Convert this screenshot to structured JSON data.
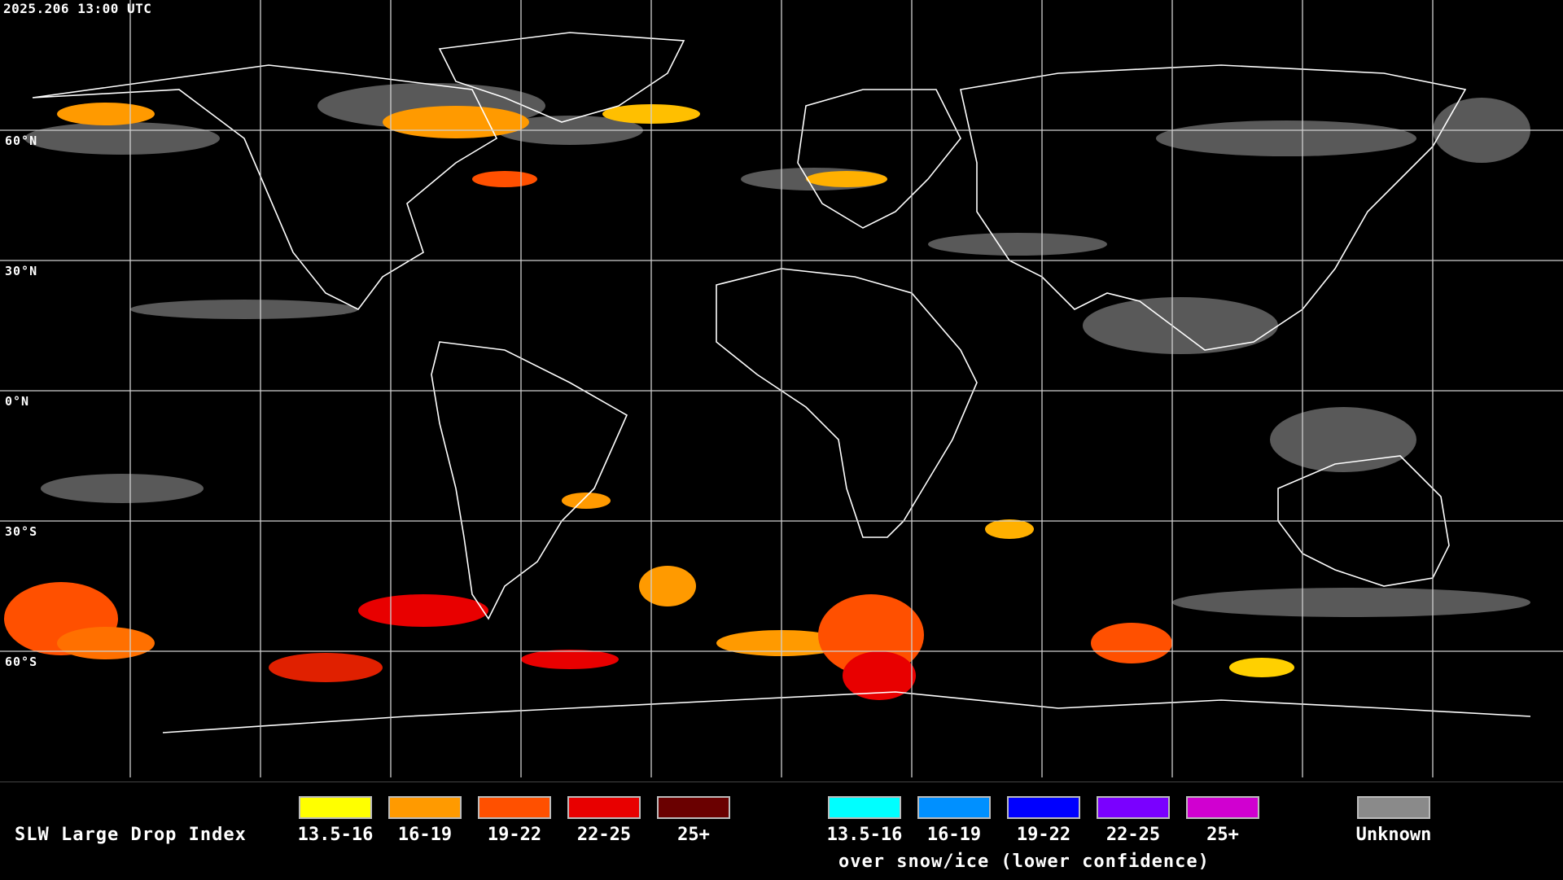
{
  "map": {
    "timestamp": "2025.206 13:00 UTC",
    "lat_labels": [
      "60°N",
      "30°N",
      "0°N",
      "30°S",
      "60°S"
    ]
  },
  "legend": {
    "title": "SLW Large Drop Index",
    "warm_scale": [
      {
        "label": "13.5-16",
        "color": "#ffff00"
      },
      {
        "label": "16-19",
        "color": "#ff9a00"
      },
      {
        "label": "19-22",
        "color": "#ff5000"
      },
      {
        "label": "22-25",
        "color": "#e80000"
      },
      {
        "label": "25+",
        "color": "#6a0000"
      }
    ],
    "snow_scale": [
      {
        "label": "13.5-16",
        "color": "#00ffff"
      },
      {
        "label": "16-19",
        "color": "#0090ff"
      },
      {
        "label": "19-22",
        "color": "#0000ff"
      },
      {
        "label": "22-25",
        "color": "#7a00ff"
      },
      {
        "label": "25+",
        "color": "#d000d0"
      }
    ],
    "snow_note": "over snow/ice (lower confidence)",
    "unknown": {
      "label": "Unknown",
      "color": "#8a8a8a"
    }
  }
}
